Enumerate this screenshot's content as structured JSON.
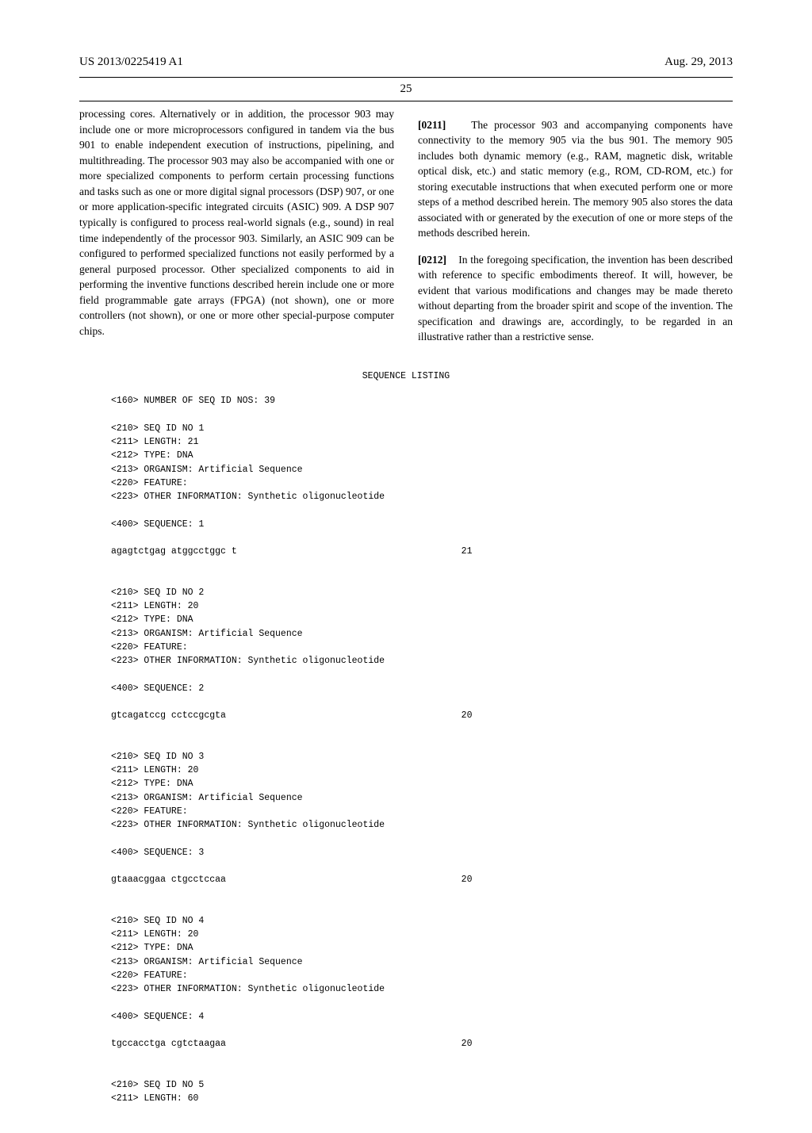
{
  "header": {
    "pub_number": "US 2013/0225419 A1",
    "date": "Aug. 29, 2013",
    "page_number": "25"
  },
  "left_column": {
    "text": "processing cores. Alternatively or in addition, the processor 903 may include one or more microprocessors configured in tandem via the bus 901 to enable independent execution of instructions, pipelining, and multithreading. The processor 903 may also be accompanied with one or more specialized components to perform certain processing functions and tasks such as one or more digital signal processors (DSP) 907, or one or more application-specific integrated circuits (ASIC) 909. A DSP 907 typically is configured to process real-world signals (e.g., sound) in real time independently of the processor 903. Similarly, an ASIC 909 can be configured to performed specialized functions not easily performed by a general purposed processor. Other specialized components to aid in performing the inventive functions described herein include one or more field programmable gate arrays (FPGA) (not shown), one or more controllers (not shown), or one or more other special-purpose computer chips."
  },
  "right_column": {
    "para1_num": "[0211]",
    "para1_text": "The processor 903 and accompanying components have connectivity to the memory 905 via the bus 901. The memory 905 includes both dynamic memory (e.g., RAM, magnetic disk, writable optical disk, etc.) and static memory (e.g., ROM, CD-ROM, etc.) for storing executable instructions that when executed perform one or more steps of a method described herein. The memory 905 also stores the data associated with or generated by the execution of one or more steps of the methods described herein.",
    "para2_num": "[0212]",
    "para2_text": "In the foregoing specification, the invention has been described with reference to specific embodiments thereof. It will, however, be evident that various modifications and changes may be made thereto without departing from the broader spirit and scope of the invention. The specification and drawings are, accordingly, to be regarded in an illustrative rather than a restrictive sense."
  },
  "sequence_listing": {
    "title": "SEQUENCE LISTING",
    "header_160": "<160> NUMBER OF SEQ ID NOS: 39",
    "entries": [
      {
        "lines": [
          "<210> SEQ ID NO 1",
          "<211> LENGTH: 21",
          "<212> TYPE: DNA",
          "<213> ORGANISM: Artificial Sequence",
          "<220> FEATURE:",
          "<223> OTHER INFORMATION: Synthetic oligonucleotide",
          "",
          "<400> SEQUENCE: 1"
        ],
        "seq": "agagtctgag atggcctggc t",
        "len": "21"
      },
      {
        "lines": [
          "<210> SEQ ID NO 2",
          "<211> LENGTH: 20",
          "<212> TYPE: DNA",
          "<213> ORGANISM: Artificial Sequence",
          "<220> FEATURE:",
          "<223> OTHER INFORMATION: Synthetic oligonucleotide",
          "",
          "<400> SEQUENCE: 2"
        ],
        "seq": "gtcagatccg cctccgcgta",
        "len": "20"
      },
      {
        "lines": [
          "<210> SEQ ID NO 3",
          "<211> LENGTH: 20",
          "<212> TYPE: DNA",
          "<213> ORGANISM: Artificial Sequence",
          "<220> FEATURE:",
          "<223> OTHER INFORMATION: Synthetic oligonucleotide",
          "",
          "<400> SEQUENCE: 3"
        ],
        "seq": "gtaaacggaa ctgcctccaa",
        "len": "20"
      },
      {
        "lines": [
          "<210> SEQ ID NO 4",
          "<211> LENGTH: 20",
          "<212> TYPE: DNA",
          "<213> ORGANISM: Artificial Sequence",
          "<220> FEATURE:",
          "<223> OTHER INFORMATION: Synthetic oligonucleotide",
          "",
          "<400> SEQUENCE: 4"
        ],
        "seq": "tgccacctga cgtctaagaa",
        "len": "20"
      },
      {
        "lines": [
          "<210> SEQ ID NO 5",
          "<211> LENGTH: 60"
        ],
        "seq": "",
        "len": ""
      }
    ]
  }
}
